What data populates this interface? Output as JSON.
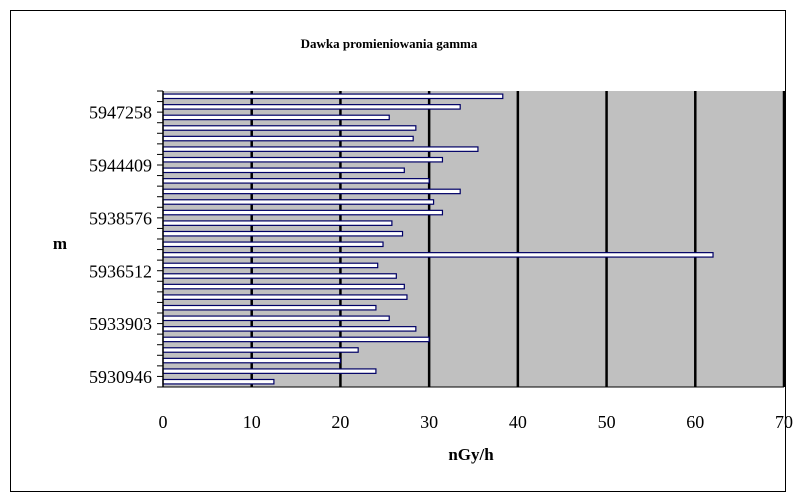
{
  "chart_data": {
    "type": "bar",
    "orientation": "horizontal",
    "title": "Dawka promieniowania gamma",
    "xlabel": "nGy/h",
    "ylabel": "m",
    "xlim": [
      0,
      70
    ],
    "x_ticks": [
      "0",
      "10",
      "20",
      "30",
      "40",
      "50",
      "60",
      "70"
    ],
    "y_tick_labels": [
      "5930946",
      "5933903",
      "5936512",
      "5938576",
      "5944409",
      "5947258"
    ],
    "grid": "vertical",
    "legend": "none",
    "colors": {
      "plot_bg": "#c0c0c0",
      "bar_fill": "#ffffff",
      "bar_edge": "#000066",
      "grid": "#000000"
    },
    "values_bottom_to_top": [
      12.5,
      24,
      20,
      22,
      30,
      28.5,
      25.5,
      24,
      27.5,
      27.2,
      26.3,
      24.2,
      62,
      24.8,
      27,
      25.8,
      31.5,
      30.5,
      33.5,
      30,
      27.2,
      31.5,
      35.5,
      28.2,
      28.5,
      25.5,
      33.5,
      38.3
    ]
  }
}
